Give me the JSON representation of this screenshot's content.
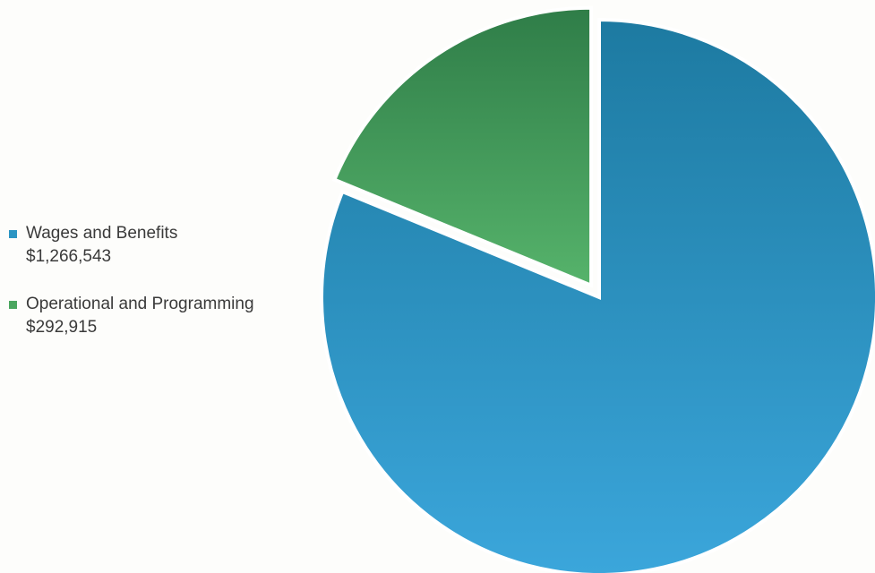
{
  "chart_data": {
    "type": "pie",
    "title": "",
    "legend_position": "left",
    "slices": [
      {
        "label": "Wages and Benefits $1,266,543",
        "value": 1266543,
        "color": "#2b95c3",
        "exploded": false
      },
      {
        "label": "Operational and Programming $292,915",
        "value": 292915,
        "color": "#4aa65f",
        "exploded": true
      }
    ]
  }
}
